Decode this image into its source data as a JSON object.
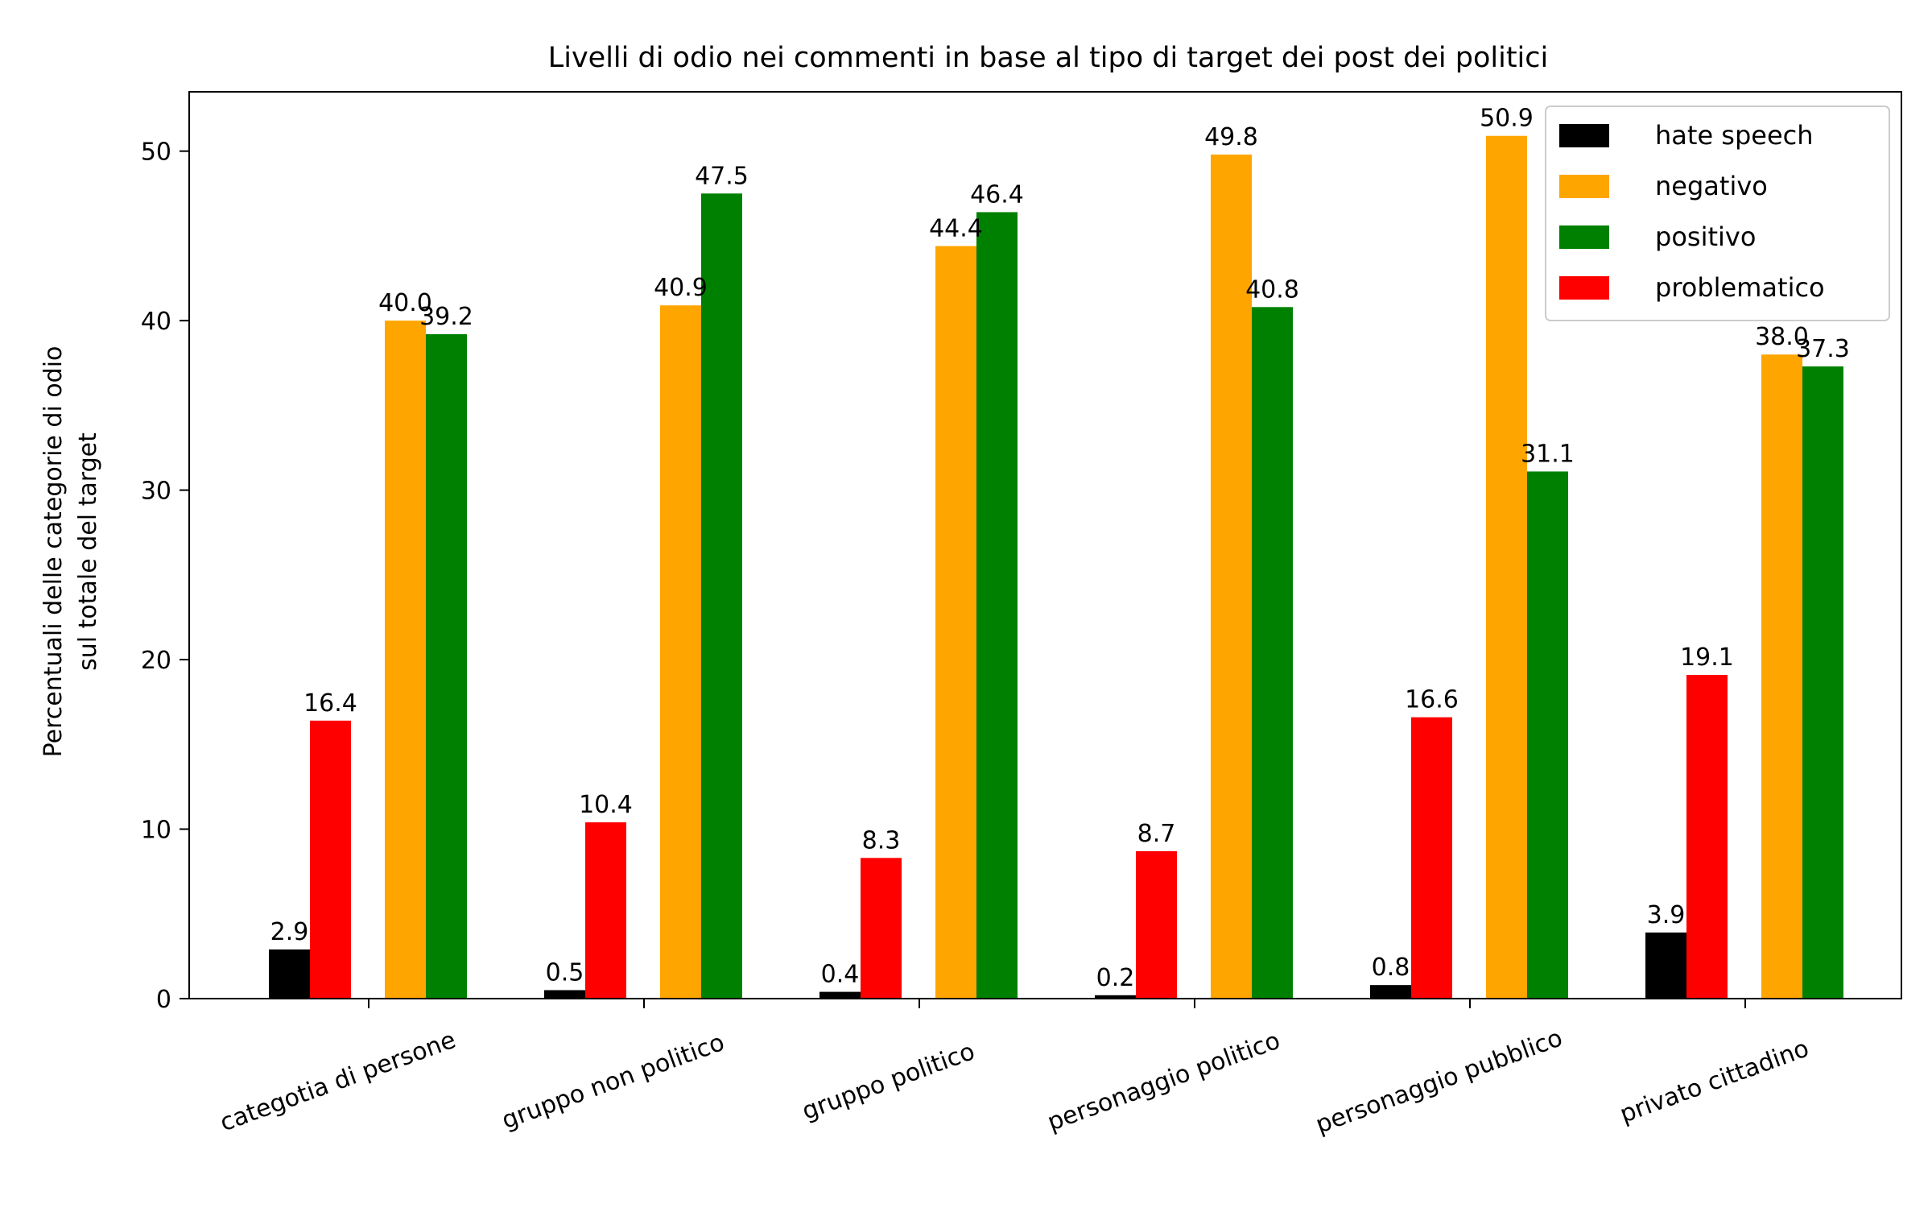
{
  "chart_data": {
    "type": "bar",
    "title": "Livelli di odio nei commenti in base al tipo di target dei post dei politici",
    "xlabel": "",
    "ylabel": [
      "Percentuali delle categorie di odio",
      "sul totale del target"
    ],
    "categories": [
      "categotia di persone",
      "gruppo non politico",
      "gruppo politico",
      "personaggio politico",
      "personaggio pubblico",
      "privato cittadino"
    ],
    "ylim": [
      0,
      53.5
    ],
    "yticks": [
      "0",
      "10",
      "20",
      "30",
      "40",
      "50"
    ],
    "grid": false,
    "legend_position": "top-right",
    "series": [
      {
        "name": "hate speech",
        "color": "#000000",
        "values": [
          2.9,
          0.5,
          0.4,
          0.2,
          0.8,
          3.9
        ],
        "labels": [
          "2.9",
          "0.5",
          "0.4",
          "0.2",
          "0.8",
          "3.9"
        ]
      },
      {
        "name": "negativo",
        "color": "#ffa500",
        "values": [
          40.0,
          40.9,
          44.4,
          49.8,
          50.9,
          38.0
        ],
        "labels": [
          "40.0",
          "40.9",
          "44.4",
          "49.8",
          "50.9",
          "38.0"
        ]
      },
      {
        "name": "positivo",
        "color": "#008000",
        "values": [
          39.2,
          47.5,
          46.4,
          40.8,
          31.1,
          37.3
        ],
        "labels": [
          "39.2",
          "47.5",
          "46.4",
          "40.8",
          "31.1",
          "37.3"
        ]
      },
      {
        "name": "problematico",
        "color": "#ff0000",
        "values": [
          16.4,
          10.4,
          8.3,
          8.7,
          16.6,
          19.1
        ],
        "labels": [
          "16.4",
          "10.4",
          "8.3",
          "8.7",
          "16.6",
          "19.1"
        ]
      }
    ]
  }
}
